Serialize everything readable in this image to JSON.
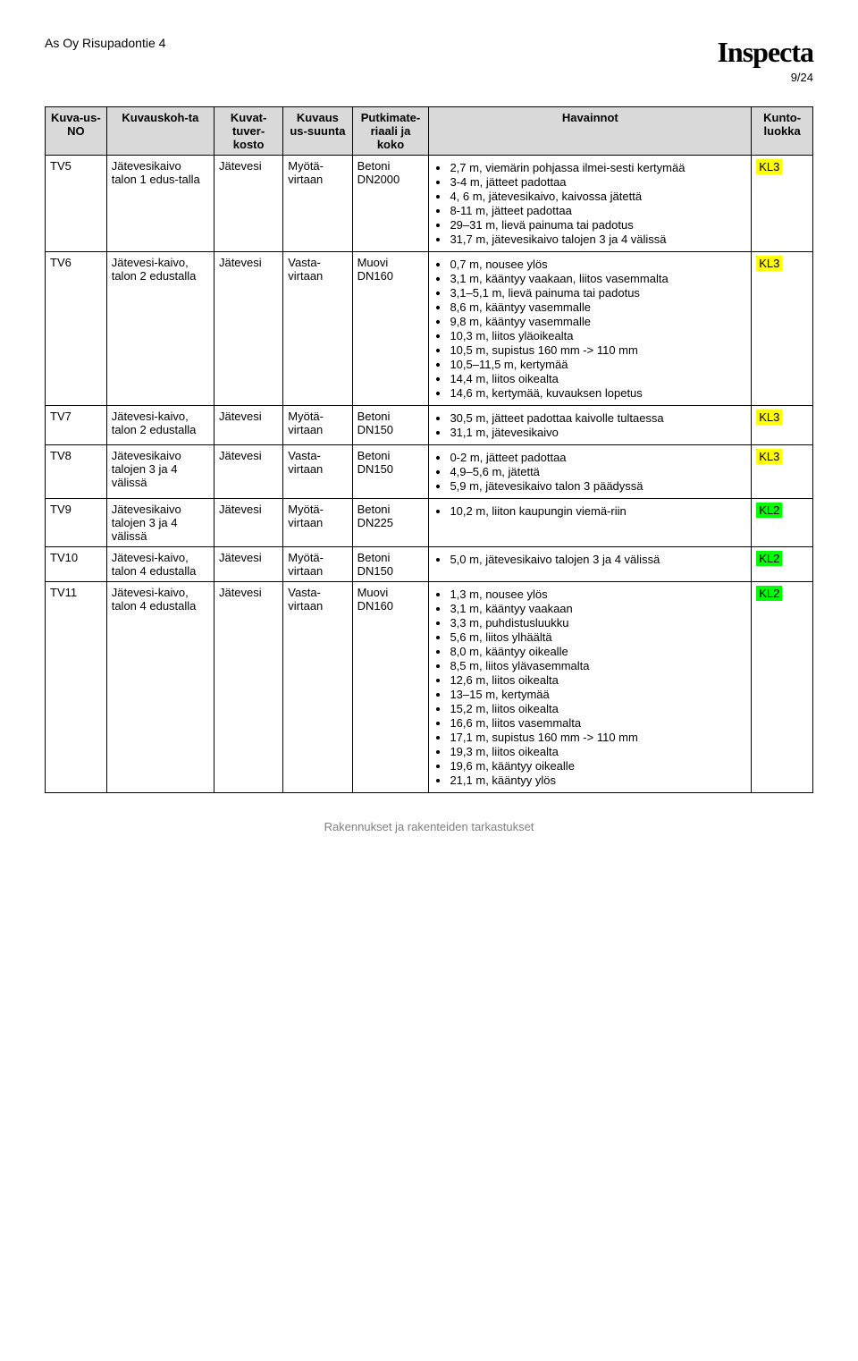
{
  "header": {
    "title": "As Oy Risupadontie 4",
    "logo": "Inspecta",
    "page": "9/24"
  },
  "table": {
    "columns": [
      "Kuva-us-NO",
      "Kuvauskoh-ta",
      "Kuvat-tuver-kosto",
      "Kuvaus us-suunta",
      "Putkimate-riaali ja koko",
      "Havainnot",
      "Kunto-luokka"
    ]
  },
  "rows": [
    {
      "id": "TV5",
      "target": "Jätevesikaivo talon 1 edus-talla",
      "network": "Jätevesi",
      "direction": "Myötä-virtaan",
      "material": "Betoni DN2000",
      "observations": [
        "2,7 m, viemärin pohjassa ilmei-sesti kertymää",
        "3-4 m, jätteet padottaa",
        "4, 6 m, jätevesikaivo, kaivossa jätettä",
        "8-11 m, jätteet padottaa",
        "29–31 m, lievä painuma tai padotus",
        "31,7 m, jätevesikaivo talojen 3 ja 4 välissä"
      ],
      "kl": {
        "label": "KL3",
        "bg": "#ffff00",
        "fg": "#000000"
      }
    },
    {
      "id": "TV6",
      "target": "Jätevesi-kaivo, talon 2 edustalla",
      "network": "Jätevesi",
      "direction": "Vasta-virtaan",
      "material": "Muovi DN160",
      "observations": [
        "0,7 m, nousee ylös",
        "3,1 m, kääntyy vaakaan, liitos vasemmalta",
        "3,1–5,1 m, lievä painuma tai padotus",
        "8,6 m, kääntyy vasemmalle",
        "9,8 m, kääntyy vasemmalle",
        "10,3 m, liitos yläoikealta",
        "10,5 m, supistus 160 mm -> 110 mm",
        "10,5–11,5 m, kertymää",
        "14,4 m, liitos oikealta",
        "14,6 m, kertymää, kuvauksen lopetus"
      ],
      "kl": {
        "label": "KL3",
        "bg": "#ffff00",
        "fg": "#000000"
      }
    },
    {
      "id": "TV7",
      "target": "Jätevesi-kaivo, talon 2 edustalla",
      "network": "Jätevesi",
      "direction": "Myötä-virtaan",
      "material": "Betoni DN150",
      "observations": [
        "30,5 m, jätteet padottaa kaivolle tultaessa",
        "31,1 m, jätevesikaivo"
      ],
      "kl": {
        "label": "KL3",
        "bg": "#ffff00",
        "fg": "#000000"
      }
    },
    {
      "id": "TV8",
      "target": "Jätevesikaivo talojen 3 ja 4 välissä",
      "network": "Jätevesi",
      "direction": "Vasta-virtaan",
      "material": "Betoni DN150",
      "observations": [
        "0-2 m, jätteet padottaa",
        "4,9–5,6 m, jätettä",
        "5,9 m, jätevesikaivo talon 3 päädyssä"
      ],
      "kl": {
        "label": "KL3",
        "bg": "#ffff00",
        "fg": "#000000"
      }
    },
    {
      "id": "TV9",
      "target": "Jätevesikaivo talojen 3 ja 4 välissä",
      "network": "Jätevesi",
      "direction": "Myötä-virtaan",
      "material": "Betoni DN225",
      "observations": [
        "10,2 m, liiton kaupungin viemä-riin"
      ],
      "kl": {
        "label": "KL2",
        "bg": "#00ff00",
        "fg": "#000000"
      }
    },
    {
      "id": "TV10",
      "target": "Jätevesi-kaivo, talon 4 edustalla",
      "network": "Jätevesi",
      "direction": "Myötä-virtaan",
      "material": "Betoni DN150",
      "observations": [
        "5,0 m, jätevesikaivo talojen 3 ja 4 välissä"
      ],
      "kl": {
        "label": "KL2",
        "bg": "#00ff00",
        "fg": "#000000"
      }
    },
    {
      "id": "TV11",
      "target": "Jätevesi-kaivo, talon 4 edustalla",
      "network": "Jätevesi",
      "direction": "Vasta-virtaan",
      "material": "Muovi DN160",
      "observations": [
        "1,3 m, nousee ylös",
        "3,1 m, kääntyy vaakaan",
        "3,3 m, puhdistusluukku",
        "5,6 m, liitos ylhäältä",
        "8,0 m, kääntyy oikealle",
        "8,5 m, liitos ylävasemmalta",
        "12,6 m, liitos oikealta",
        "13–15 m, kertymää",
        "15,2 m, liitos oikealta",
        "16,6 m, liitos vasemmalta",
        "17,1 m, supistus 160 mm -> 110 mm",
        "19,3 m, liitos oikealta",
        "19,6 m, kääntyy oikealle",
        "21,1 m, kääntyy ylös"
      ],
      "kl": {
        "label": "KL2",
        "bg": "#00ff00",
        "fg": "#000000"
      }
    }
  ],
  "footer": "Rakennukset ja rakenteiden tarkastukset"
}
